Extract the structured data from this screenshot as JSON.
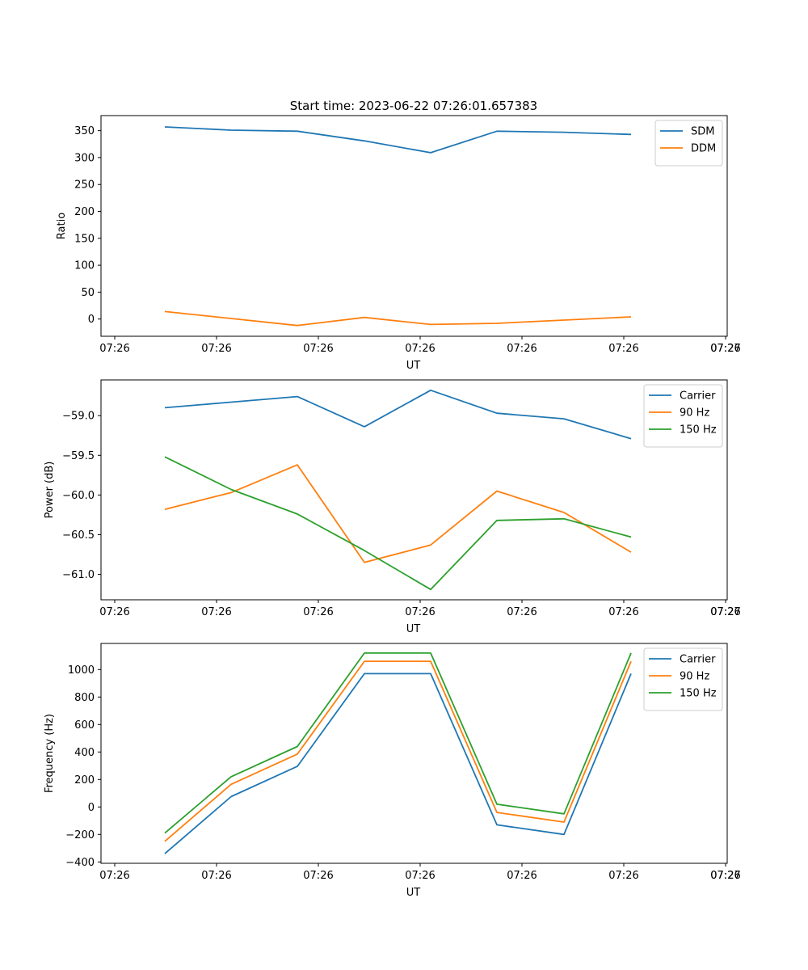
{
  "figure": {
    "title": "Start time: 2023-06-22 07:26:01.657383"
  },
  "chart_data": [
    {
      "type": "line",
      "title": "Start time: 2023-06-22 07:26:01.657383",
      "xlabel": "UT",
      "ylabel": "Ratio",
      "x_tick_labels": [
        "07:26",
        "07:26",
        "07:26",
        "07:26",
        "07:26",
        "07:26",
        "07:26",
        "07:27"
      ],
      "y_ticks": [
        0,
        50,
        100,
        150,
        200,
        250,
        300,
        350
      ],
      "ylim": [
        -32,
        378
      ],
      "legend": "top-right",
      "grid": false,
      "series": [
        {
          "name": "SDM",
          "color": "#1f77b4",
          "values": [
            357,
            351,
            349,
            331,
            309,
            349,
            347,
            343
          ]
        },
        {
          "name": "DDM",
          "color": "#ff7f0e",
          "values": [
            14,
            1,
            -12,
            3,
            -10,
            -8,
            -2,
            4
          ]
        }
      ]
    },
    {
      "type": "line",
      "xlabel": "UT",
      "ylabel": "Power (dB)",
      "x_tick_labels": [
        "07:26",
        "07:26",
        "07:26",
        "07:26",
        "07:26",
        "07:26",
        "07:26",
        "07:27"
      ],
      "y_ticks": [
        -59.0,
        -59.5,
        -60.0,
        -60.5,
        -61.0
      ],
      "y_tick_labels": [
        "−59.0",
        "−59.5",
        "−60.0",
        "−60.5",
        "−61.0"
      ],
      "ylim": [
        -61.32,
        -58.55
      ],
      "legend": "top-right",
      "grid": false,
      "series": [
        {
          "name": "Carrier",
          "color": "#1f77b4",
          "values": [
            -58.9,
            -58.83,
            -58.76,
            -59.14,
            -58.68,
            -58.97,
            -59.04,
            -59.29
          ]
        },
        {
          "name": "90 Hz",
          "color": "#ff7f0e",
          "values": [
            -60.18,
            -59.97,
            -59.62,
            -60.85,
            -60.63,
            -59.95,
            -60.22,
            -60.72
          ]
        },
        {
          "name": "150 Hz",
          "color": "#2ca02c",
          "values": [
            -59.52,
            -59.93,
            -60.24,
            -60.7,
            -61.19,
            -60.32,
            -60.3,
            -60.53
          ]
        }
      ]
    },
    {
      "type": "line",
      "xlabel": "UT",
      "ylabel": "Frequency (Hz)",
      "x_tick_labels": [
        "07:26",
        "07:26",
        "07:26",
        "07:26",
        "07:26",
        "07:26",
        "07:26",
        "07:27"
      ],
      "y_ticks": [
        -400,
        -200,
        0,
        200,
        400,
        600,
        800,
        1000
      ],
      "y_tick_labels": [
        "−400",
        "−200",
        "0",
        "200",
        "400",
        "600",
        "800",
        "1000"
      ],
      "ylim": [
        -410,
        1190
      ],
      "legend": "top-right",
      "grid": false,
      "series": [
        {
          "name": "Carrier",
          "color": "#1f77b4",
          "values": [
            -340,
            75,
            295,
            970,
            970,
            -130,
            -200,
            970
          ]
        },
        {
          "name": "90 Hz",
          "color": "#ff7f0e",
          "values": [
            -250,
            165,
            385,
            1060,
            1060,
            -40,
            -110,
            1060
          ]
        },
        {
          "name": "150 Hz",
          "color": "#2ca02c",
          "values": [
            -190,
            220,
            440,
            1120,
            1120,
            20,
            -50,
            1120
          ]
        }
      ]
    }
  ]
}
